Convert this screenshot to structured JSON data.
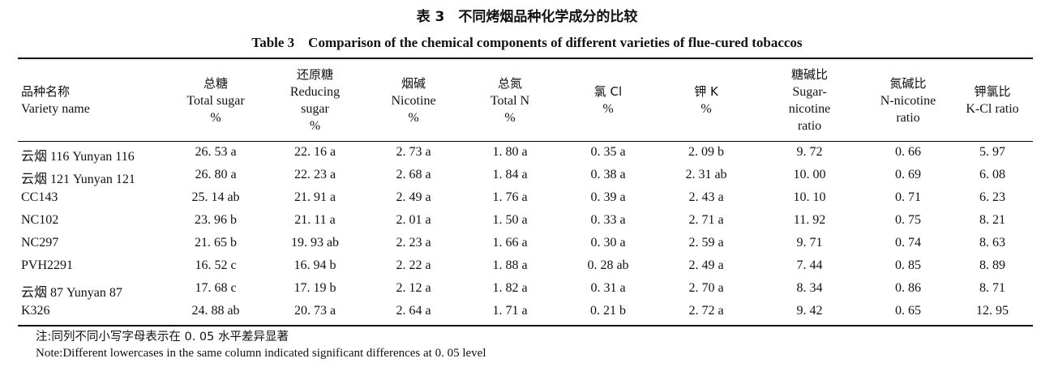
{
  "title_cn": "表 3　不同烤烟品种化学成分的比较",
  "title_en": "Table 3　Comparison of the chemical components of different varieties of flue-cured tobaccos",
  "headers": [
    {
      "cn": "品种名称",
      "en": [
        "Variety name"
      ],
      "unit": ""
    },
    {
      "cn": "总糖",
      "en": [
        "Total sugar"
      ],
      "unit": "%"
    },
    {
      "cn": "还原糖",
      "en": [
        "Reducing",
        "sugar"
      ],
      "unit": "%"
    },
    {
      "cn": "烟碱",
      "en": [
        "Nicotine"
      ],
      "unit": "%"
    },
    {
      "cn": "总氮",
      "en": [
        "Total N"
      ],
      "unit": "%"
    },
    {
      "cn": "氯 Cl",
      "en": [],
      "unit": "%"
    },
    {
      "cn": "钾 K",
      "en": [],
      "unit": "%"
    },
    {
      "cn": "糖碱比",
      "en": [
        "Sugar-",
        "nicotine",
        "ratio"
      ],
      "unit": ""
    },
    {
      "cn": "氮碱比",
      "en": [
        "N-nicotine",
        "ratio"
      ],
      "unit": ""
    },
    {
      "cn": "钾氯比",
      "en": [
        "K-Cl ratio"
      ],
      "unit": ""
    }
  ],
  "rows": [
    [
      "云烟 116 Yunyan 116",
      "26. 53 a",
      "22. 16 a",
      "2. 73 a",
      "1. 80 a",
      "0. 35 a",
      "2. 09 b",
      "9. 72",
      "0. 66",
      "5. 97"
    ],
    [
      "云烟 121 Yunyan 121",
      "26. 80 a",
      "22. 23 a",
      "2. 68 a",
      "1. 84 a",
      "0. 38 a",
      "2. 31 ab",
      "10. 00",
      "0. 69",
      "6. 08"
    ],
    [
      "CC143",
      "25. 14 ab",
      "21. 91 a",
      "2. 49 a",
      "1. 76 a",
      "0. 39 a",
      "2. 43 a",
      "10. 10",
      "0. 71",
      "6. 23"
    ],
    [
      "NC102",
      "23. 96 b",
      "21. 11 a",
      "2. 01 a",
      "1. 50 a",
      "0. 33 a",
      "2. 71 a",
      "11. 92",
      "0. 75",
      "8. 21"
    ],
    [
      "NC297",
      "21. 65 b",
      "19. 93 ab",
      "2. 23 a",
      "1. 66 a",
      "0. 30 a",
      "2. 59 a",
      "9. 71",
      "0. 74",
      "8. 63"
    ],
    [
      "PVH2291",
      "16. 52 c",
      "16. 94 b",
      "2. 22 a",
      "1. 88 a",
      "0. 28 ab",
      "2. 49 a",
      "7. 44",
      "0. 85",
      "8. 89"
    ],
    [
      "云烟 87 Yunyan 87",
      "17. 68 c",
      "17. 19 b",
      "2. 12 a",
      "1. 82 a",
      "0. 31 a",
      "2. 70 a",
      "8. 34",
      "0. 86",
      "8. 71"
    ],
    [
      "K326",
      "24. 88 ab",
      "20. 73 a",
      "2. 64 a",
      "1. 71 a",
      "0. 21 b",
      "2. 72 a",
      "9. 42",
      "0. 65",
      "12. 95"
    ]
  ],
  "note_cn": "注:同列不同小写字母表示在 0. 05 水平差异显著",
  "note_en": "Note:Different lowercases in the same column indicated significant differences at 0. 05 level"
}
